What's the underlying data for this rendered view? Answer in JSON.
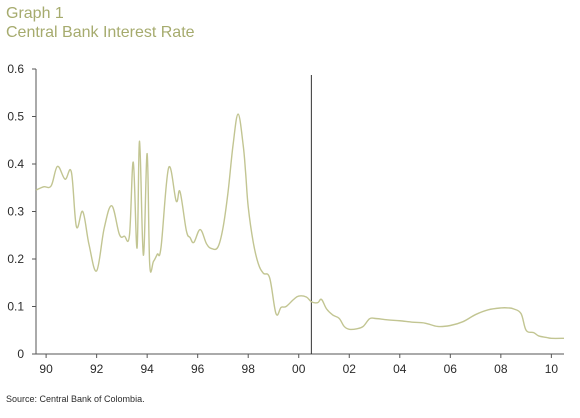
{
  "header": {
    "title": "Graph 1",
    "subtitle": "Central Bank Interest Rate"
  },
  "source": "Source: Central Bank of Colombia.",
  "colors": {
    "line": "#c2c592",
    "title": "#a6ab6e",
    "axis": "#555555",
    "text": "#2b2b2b"
  },
  "chart_data": {
    "type": "line",
    "title": "Central Bank Interest Rate",
    "xlabel": "",
    "ylabel": "",
    "xlim": [
      1989.6,
      2010.5
    ],
    "ylim": [
      0,
      0.6
    ],
    "grid": false,
    "y_ticks": [
      0,
      0.1,
      0.2,
      0.3,
      0.4,
      0.5,
      0.6
    ],
    "y_tick_labels": [
      "0",
      "0.1",
      "0.2",
      "0.3",
      "0.4",
      "0.5",
      "0.6"
    ],
    "x_ticks": [
      1990,
      1992,
      1994,
      1996,
      1998,
      2000,
      2002,
      2004,
      2006,
      2008,
      2010
    ],
    "x_tick_labels": [
      "90",
      "92",
      "94",
      "96",
      "98",
      "00",
      "02",
      "04",
      "06",
      "08",
      "10"
    ],
    "vline_x": 2000.5,
    "series": [
      {
        "x": [
          1989.6,
          1989.9,
          1990.2,
          1990.45,
          1990.75,
          1991.0,
          1991.2,
          1991.45,
          1991.7,
          1992.0,
          1992.3,
          1992.6,
          1992.9,
          1993.1,
          1993.3,
          1993.45,
          1993.6,
          1993.7,
          1993.85,
          1994.0,
          1994.1,
          1994.25,
          1994.4,
          1994.55,
          1994.85,
          1995.15,
          1995.3,
          1995.55,
          1995.7,
          1995.85,
          1996.1,
          1996.35,
          1996.55,
          1996.8,
          1997.0,
          1997.2,
          1997.4,
          1997.6,
          1997.8,
          1997.9,
          1998.0,
          1998.2,
          1998.4,
          1998.6,
          1998.85,
          1999.1,
          1999.3,
          1999.5,
          1999.8,
          2000.0,
          2000.3,
          2000.5,
          2000.75,
          2000.9,
          2001.1,
          2001.35,
          2001.6,
          2001.8,
          2002.0,
          2002.3,
          2002.55,
          2002.8,
          2003.0,
          2003.5,
          2004.0,
          2004.5,
          2005.0,
          2005.5,
          2006.0,
          2006.5,
          2007.0,
          2007.5,
          2008.0,
          2008.3,
          2008.5,
          2008.8,
          2009.0,
          2009.3,
          2009.5,
          2009.8,
          2010.0,
          2010.5
        ],
        "y": [
          0.345,
          0.352,
          0.354,
          0.395,
          0.368,
          0.383,
          0.268,
          0.3,
          0.23,
          0.175,
          0.265,
          0.312,
          0.252,
          0.248,
          0.25,
          0.404,
          0.223,
          0.448,
          0.208,
          0.422,
          0.19,
          0.195,
          0.21,
          0.225,
          0.392,
          0.322,
          0.342,
          0.26,
          0.245,
          0.235,
          0.262,
          0.232,
          0.222,
          0.225,
          0.265,
          0.34,
          0.44,
          0.505,
          0.44,
          0.38,
          0.31,
          0.235,
          0.19,
          0.17,
          0.16,
          0.085,
          0.098,
          0.1,
          0.115,
          0.122,
          0.12,
          0.11,
          0.108,
          0.115,
          0.095,
          0.082,
          0.075,
          0.058,
          0.052,
          0.053,
          0.058,
          0.074,
          0.075,
          0.072,
          0.07,
          0.067,
          0.065,
          0.058,
          0.06,
          0.068,
          0.083,
          0.093,
          0.097,
          0.097,
          0.095,
          0.085,
          0.05,
          0.045,
          0.038,
          0.035,
          0.033,
          0.033
        ]
      }
    ]
  }
}
